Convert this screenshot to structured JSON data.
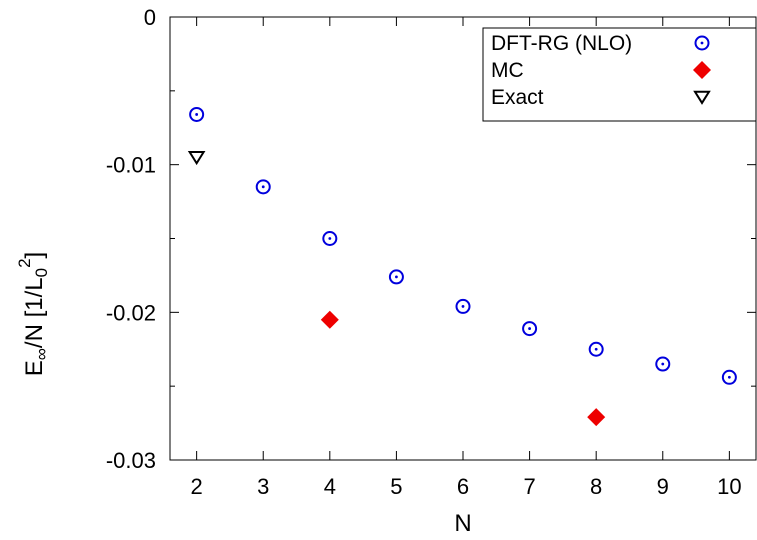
{
  "chart_data": {
    "type": "scatter",
    "title": "",
    "xlabel": "N",
    "ylabel": {
      "prefix": "E",
      "prefix_sub": "∞",
      "middle": "/N [1/L",
      "unit_sub": "0",
      "unit_sup": "2",
      "suffix": "]"
    },
    "xlim": [
      1.6,
      10.4
    ],
    "ylim": [
      -0.03,
      0
    ],
    "xticks": [
      2,
      3,
      4,
      5,
      6,
      7,
      8,
      9,
      10
    ],
    "xtick_labels": [
      "2",
      "3",
      "4",
      "5",
      "6",
      "7",
      "8",
      "9",
      "10"
    ],
    "yticks": [
      0,
      -0.01,
      -0.02,
      -0.03
    ],
    "ytick_labels": [
      "0",
      "-0.01",
      "-0.02",
      "-0.03"
    ],
    "y_minor_ticks": [
      -0.005,
      -0.015,
      -0.025
    ],
    "grid": false,
    "legend_position": "top-right",
    "series": [
      {
        "name": "DFT-RG (NLO)",
        "marker": "circle-dot",
        "color": "#0000dd",
        "x": [
          2,
          3,
          4,
          5,
          6,
          7,
          8,
          9,
          10
        ],
        "y": [
          -0.0066,
          -0.0115,
          -0.015,
          -0.0176,
          -0.0196,
          -0.0211,
          -0.0225,
          -0.0235,
          -0.0244
        ]
      },
      {
        "name": "MC",
        "marker": "diamond-filled",
        "color": "#ee0000",
        "x": [
          4,
          8
        ],
        "y": [
          -0.0205,
          -0.0271
        ]
      },
      {
        "name": "Exact",
        "marker": "triangle-down",
        "color": "#000000",
        "x": [
          2
        ],
        "y": [
          -0.0095
        ]
      }
    ]
  }
}
